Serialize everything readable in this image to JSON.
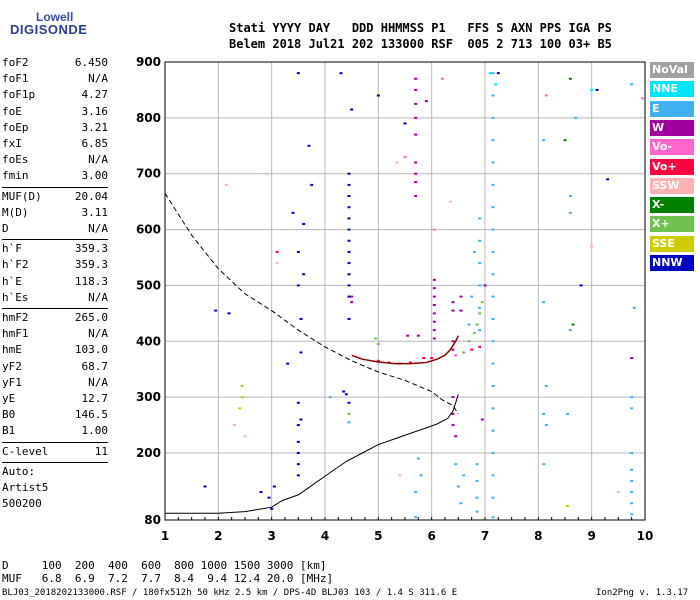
{
  "logo": {
    "line1": "Lowell",
    "line2": "DIGISONDE"
  },
  "header": {
    "line1": "Stati YYYY DAY   DDD HHMMSS P1   FFS S AXN PPS IGA PS",
    "line2": "Belem 2018 Jul21 202 133000 RSF  005 2 713 100 03+ B5"
  },
  "params": {
    "group1": [
      {
        "name": "foF2",
        "value": "6.450"
      },
      {
        "name": "foF1",
        "value": "N/A"
      },
      {
        "name": "foF1p",
        "value": "4.27"
      },
      {
        "name": "foE",
        "value": "3.16"
      },
      {
        "name": "foEp",
        "value": "3.21"
      },
      {
        "name": "fxI",
        "value": "6.85"
      },
      {
        "name": "foEs",
        "value": "N/A"
      },
      {
        "name": "fmin",
        "value": "3.00"
      }
    ],
    "group2": [
      {
        "name": "MUF(D)",
        "value": "20.04"
      },
      {
        "name": "M(D)",
        "value": "3.11"
      },
      {
        "name": "D",
        "value": "N/A"
      }
    ],
    "group3": [
      {
        "name": "h`F",
        "value": "359.3"
      },
      {
        "name": "h`F2",
        "value": "359.3"
      },
      {
        "name": "h`E",
        "value": "118.3"
      },
      {
        "name": "h`Es",
        "value": "N/A"
      }
    ],
    "group4": [
      {
        "name": "hmF2",
        "value": "265.0"
      },
      {
        "name": "hmF1",
        "value": "N/A"
      },
      {
        "name": "hmE",
        "value": "103.0"
      },
      {
        "name": "yF2",
        "value": "68.7"
      },
      {
        "name": "yF1",
        "value": "N/A"
      },
      {
        "name": "yE",
        "value": "12.7"
      },
      {
        "name": "B0",
        "value": "146.5"
      },
      {
        "name": "B1",
        "value": "1.00"
      }
    ],
    "clevel": {
      "name": "C-level",
      "value": "11"
    },
    "auto_lines": [
      "Auto:",
      "Artist5",
      "500200"
    ]
  },
  "legend": [
    {
      "label": "NoVal",
      "color": "#a0a0a0"
    },
    {
      "label": "NNE",
      "color": "#00e5ff"
    },
    {
      "label": "E",
      "color": "#40b0f0"
    },
    {
      "label": "W",
      "color": "#a000a0"
    },
    {
      "label": "Vo-",
      "color": "#ff66cc"
    },
    {
      "label": "Vo+",
      "color": "#ff0040"
    },
    {
      "label": "SSW",
      "color": "#ffb0b0"
    },
    {
      "label": "X-",
      "color": "#008000"
    },
    {
      "label": "X+",
      "color": "#70c050"
    },
    {
      "label": "SSE",
      "color": "#cccc00"
    },
    {
      "label": "NNW",
      "color": "#0000c0"
    }
  ],
  "bottom": {
    "d_line": "D     100  200  400  600  800 1000 1500 3000 [km]",
    "muf_line": "MUF   6.8  6.9  7.2  7.7  8.4  9.4 12.4 20.0 [MHz]"
  },
  "footer": {
    "left": "BLJ03_2018202133000.RSF / 180fx512h 50 kHz 2.5 km / DPS-4D BLJ03 103 / 1.4 S 311.6 E",
    "right": "Ion2Png v. 1.3.17"
  },
  "chart_data": {
    "type": "scatter",
    "title": "",
    "xlabel": "",
    "ylabel": "",
    "xlim": [
      1,
      10
    ],
    "ylim": [
      80,
      900
    ],
    "x_ticks": [
      "1",
      "2",
      "3",
      "4",
      "5",
      "6",
      "7",
      "8",
      "9",
      "10"
    ],
    "y_ticks": [
      "80",
      "200",
      "300",
      "400",
      "500",
      "600",
      "700",
      "800",
      "900"
    ],
    "grid": true,
    "series": [
      {
        "name": "NNE",
        "color": "#00e5ff",
        "points": [
          [
            7.1,
            880
          ],
          [
            7.2,
            860
          ],
          [
            9.0,
            850
          ],
          [
            7.15,
            720
          ]
        ]
      },
      {
        "name": "E",
        "color": "#40b0f0",
        "points": [
          [
            7.15,
            880
          ],
          [
            7.15,
            840
          ],
          [
            7.15,
            800
          ],
          [
            7.15,
            760
          ],
          [
            7.15,
            720
          ],
          [
            7.15,
            680
          ],
          [
            7.15,
            640
          ],
          [
            7.15,
            600
          ],
          [
            7.15,
            560
          ],
          [
            7.15,
            520
          ],
          [
            7.15,
            480
          ],
          [
            7.15,
            440
          ],
          [
            7.15,
            400
          ],
          [
            7.15,
            360
          ],
          [
            7.15,
            320
          ],
          [
            7.15,
            280
          ],
          [
            7.15,
            240
          ],
          [
            7.15,
            200
          ],
          [
            7.15,
            160
          ],
          [
            7.15,
            120
          ],
          [
            7.15,
            85
          ],
          [
            6.9,
            620
          ],
          [
            6.9,
            580
          ],
          [
            6.9,
            540
          ],
          [
            6.9,
            500
          ],
          [
            6.9,
            460
          ],
          [
            6.9,
            420
          ],
          [
            6.85,
            180
          ],
          [
            6.85,
            150
          ],
          [
            6.85,
            120
          ],
          [
            6.85,
            95
          ],
          [
            6.75,
            480
          ],
          [
            6.7,
            430
          ],
          [
            6.8,
            560
          ],
          [
            6.5,
            140
          ],
          [
            6.6,
            160
          ],
          [
            6.55,
            110
          ],
          [
            6.45,
            180
          ],
          [
            8.1,
            760
          ],
          [
            8.1,
            470
          ],
          [
            8.15,
            320
          ],
          [
            8.1,
            270
          ],
          [
            8.15,
            250
          ],
          [
            8.1,
            180
          ],
          [
            8.6,
            660
          ],
          [
            8.6,
            630
          ],
          [
            8.7,
            800
          ],
          [
            8.6,
            420
          ],
          [
            8.55,
            270
          ],
          [
            9.75,
            860
          ],
          [
            9.8,
            460
          ],
          [
            9.75,
            300
          ],
          [
            9.75,
            280
          ],
          [
            9.75,
            200
          ],
          [
            9.75,
            170
          ],
          [
            9.75,
            150
          ],
          [
            9.75,
            130
          ],
          [
            9.75,
            110
          ],
          [
            9.75,
            90
          ],
          [
            5.75,
            190
          ],
          [
            5.8,
            160
          ],
          [
            5.7,
            130
          ],
          [
            5.7,
            85
          ],
          [
            4.45,
            255
          ],
          [
            4.1,
            300
          ]
        ]
      },
      {
        "name": "W",
        "color": "#a000a0",
        "points": [
          [
            5.7,
            870
          ],
          [
            5.7,
            850
          ],
          [
            5.7,
            825
          ],
          [
            5.7,
            800
          ],
          [
            5.7,
            770
          ],
          [
            5.7,
            720
          ],
          [
            5.7,
            700
          ],
          [
            5.7,
            685
          ],
          [
            5.7,
            660
          ],
          [
            6.05,
            510
          ],
          [
            6.05,
            495
          ],
          [
            6.05,
            480
          ],
          [
            6.05,
            465
          ],
          [
            6.05,
            450
          ],
          [
            6.05,
            435
          ],
          [
            6.05,
            420
          ],
          [
            6.05,
            405
          ],
          [
            6.4,
            470
          ],
          [
            6.4,
            455
          ],
          [
            6.4,
            400
          ],
          [
            6.4,
            385
          ],
          [
            6.4,
            300
          ],
          [
            6.4,
            270
          ],
          [
            6.4,
            250
          ],
          [
            6.45,
            230
          ],
          [
            6.55,
            480
          ],
          [
            6.55,
            455
          ],
          [
            5.75,
            410
          ],
          [
            6.95,
            260
          ],
          [
            7.0,
            500
          ],
          [
            5.9,
            830
          ],
          [
            4.5,
            480
          ],
          [
            4.5,
            470
          ],
          [
            9.75,
            370
          ],
          [
            5.55,
            410
          ]
        ]
      },
      {
        "name": "Vo-",
        "color": "#ff66cc",
        "points": [
          [
            6.2,
            870
          ],
          [
            6.05,
            600
          ],
          [
            6.45,
            375
          ],
          [
            9.0,
            570
          ],
          [
            8.15,
            840
          ],
          [
            5.5,
            730
          ],
          [
            9.95,
            835
          ]
        ]
      },
      {
        "name": "Vo+",
        "color": "#ff0040",
        "points": [
          [
            5.0,
            365
          ],
          [
            5.2,
            362
          ],
          [
            5.4,
            360
          ],
          [
            5.6,
            362
          ],
          [
            5.85,
            370
          ],
          [
            6.0,
            370
          ],
          [
            6.6,
            380
          ],
          [
            6.75,
            385
          ],
          [
            6.9,
            390
          ],
          [
            3.1,
            560
          ]
        ]
      },
      {
        "name": "SSW",
        "color": "#ffb0b0",
        "points": [
          [
            2.15,
            680
          ],
          [
            2.9,
            700
          ],
          [
            5.35,
            720
          ],
          [
            6.35,
            650
          ],
          [
            9.0,
            570
          ],
          [
            5.4,
            160
          ],
          [
            3.1,
            540
          ],
          [
            2.5,
            230
          ],
          [
            2.3,
            250
          ],
          [
            9.5,
            130
          ]
        ]
      },
      {
        "name": "X-",
        "color": "#008000",
        "points": [
          [
            8.6,
            870
          ],
          [
            8.5,
            760
          ],
          [
            8.65,
            430
          ]
        ]
      },
      {
        "name": "X+",
        "color": "#70c050",
        "points": [
          [
            4.95,
            405
          ],
          [
            5.0,
            395
          ],
          [
            6.6,
            380
          ],
          [
            6.7,
            400
          ],
          [
            6.8,
            415
          ],
          [
            6.85,
            430
          ],
          [
            6.9,
            450
          ],
          [
            6.95,
            470
          ],
          [
            4.45,
            270
          ]
        ]
      },
      {
        "name": "SSE",
        "color": "#cccc00",
        "points": [
          [
            2.45,
            320
          ],
          [
            2.45,
            300
          ],
          [
            2.4,
            280
          ],
          [
            8.55,
            105
          ]
        ]
      },
      {
        "name": "NNW",
        "color": "#0000c0",
        "points": [
          [
            3.5,
            880
          ],
          [
            3.7,
            750
          ],
          [
            3.5,
            560
          ],
          [
            3.5,
            500
          ],
          [
            3.6,
            520
          ],
          [
            3.55,
            440
          ],
          [
            3.4,
            630
          ],
          [
            3.6,
            610
          ],
          [
            3.75,
            680
          ],
          [
            4.3,
            880
          ],
          [
            4.45,
            700
          ],
          [
            4.45,
            680
          ],
          [
            4.45,
            660
          ],
          [
            4.45,
            640
          ],
          [
            4.45,
            620
          ],
          [
            4.45,
            600
          ],
          [
            4.45,
            580
          ],
          [
            4.45,
            560
          ],
          [
            4.45,
            540
          ],
          [
            4.45,
            520
          ],
          [
            4.45,
            500
          ],
          [
            4.45,
            480
          ],
          [
            4.35,
            310
          ],
          [
            4.4,
            305
          ],
          [
            4.45,
            290
          ],
          [
            3.5,
            290
          ],
          [
            3.5,
            250
          ],
          [
            3.5,
            220
          ],
          [
            3.5,
            200
          ],
          [
            3.5,
            180
          ],
          [
            3.5,
            160
          ],
          [
            3.05,
            140
          ],
          [
            3.0,
            100
          ],
          [
            3.3,
            360
          ],
          [
            3.55,
            380
          ],
          [
            4.5,
            815
          ],
          [
            5.5,
            790
          ],
          [
            5.0,
            840
          ],
          [
            7.25,
            880
          ],
          [
            8.8,
            500
          ],
          [
            9.3,
            690
          ],
          [
            9.1,
            850
          ],
          [
            2.2,
            450
          ],
          [
            1.95,
            455
          ],
          [
            1.75,
            140
          ],
          [
            2.95,
            120
          ],
          [
            2.8,
            130
          ],
          [
            4.45,
            440
          ],
          [
            3.55,
            260
          ]
        ]
      }
    ],
    "curves": [
      {
        "name": "dashed-profile",
        "style": "dashed",
        "x": [
          1.0,
          1.5,
          2.0,
          2.5,
          3.0,
          3.5,
          4.0,
          4.5,
          5.0,
          5.5,
          6.0,
          6.2,
          6.4,
          6.5
        ],
        "y": [
          665,
          590,
          530,
          485,
          455,
          420,
          390,
          365,
          345,
          330,
          310,
          295,
          285,
          270
        ]
      },
      {
        "name": "true-height-profile",
        "style": "solid",
        "x": [
          1.0,
          2.0,
          2.5,
          3.0,
          3.2,
          3.5,
          3.8,
          4.1,
          4.4,
          4.7,
          5.0,
          5.3,
          5.6,
          5.9,
          6.1,
          6.3,
          6.4,
          6.45,
          6.5
        ],
        "y": [
          92,
          92,
          95,
          103,
          115,
          125,
          145,
          165,
          185,
          200,
          215,
          225,
          235,
          245,
          252,
          262,
          275,
          290,
          305
        ]
      },
      {
        "name": "trace-F2",
        "style": "solid",
        "x": [
          4.5,
          4.7,
          5.0,
          5.3,
          5.6,
          5.9,
          6.1,
          6.25,
          6.35,
          6.45,
          6.5
        ],
        "y": [
          375,
          368,
          363,
          360,
          360,
          362,
          368,
          375,
          385,
          400,
          410
        ]
      }
    ]
  }
}
